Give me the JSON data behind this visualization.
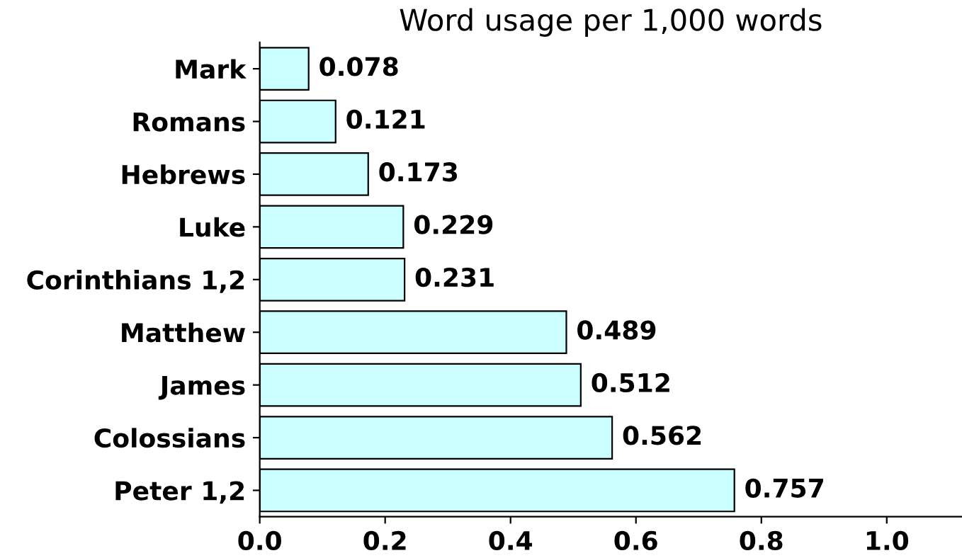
{
  "chart_data": {
    "type": "bar",
    "orientation": "horizontal",
    "title": "Word usage per 1,000 words",
    "categories": [
      "Mark",
      "Romans",
      "Hebrews",
      "Luke",
      "Corinthians 1,2",
      "Matthew",
      "James",
      "Colossians",
      "Peter 1,2"
    ],
    "values": [
      0.078,
      0.121,
      0.173,
      0.229,
      0.231,
      0.489,
      0.512,
      0.562,
      0.757
    ],
    "color": "#ccffff",
    "data_labels": true,
    "grid": false,
    "xlim": [
      0,
      1.12
    ],
    "xticks": [
      {
        "value": 0,
        "label": "0.0"
      },
      {
        "value": 0.2,
        "label": "0.2"
      },
      {
        "value": 0.4,
        "label": "0.4"
      },
      {
        "value": 0.6,
        "label": "0.6"
      },
      {
        "value": 0.8,
        "label": "0.8"
      },
      {
        "value": 1.0,
        "label": "1.0"
      }
    ]
  }
}
